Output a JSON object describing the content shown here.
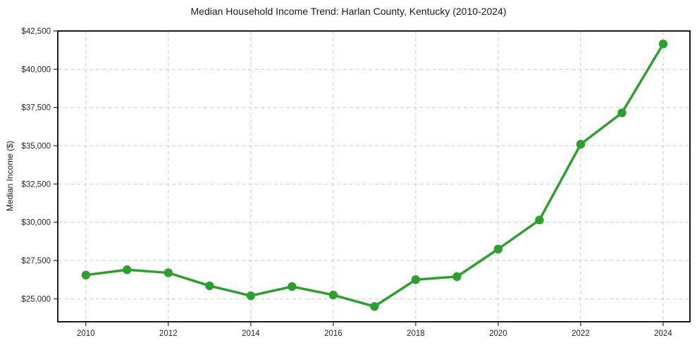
{
  "chart_data": {
    "type": "line",
    "title": "Median Household Income Trend: Harlan County, Kentucky (2010-2024)",
    "xlabel": "",
    "ylabel": "Median Income ($)",
    "x": [
      2010,
      2011,
      2012,
      2013,
      2014,
      2015,
      2016,
      2017,
      2018,
      2019,
      2020,
      2021,
      2022,
      2023,
      2024
    ],
    "values": [
      26550,
      26900,
      26700,
      25850,
      25200,
      25800,
      25250,
      24500,
      26250,
      26450,
      28250,
      30150,
      35100,
      37150,
      41650
    ],
    "x_ticks": [
      {
        "value": 2010,
        "label": "2010"
      },
      {
        "value": 2012,
        "label": "2012"
      },
      {
        "value": 2014,
        "label": "2014"
      },
      {
        "value": 2016,
        "label": "2016"
      },
      {
        "value": 2018,
        "label": "2018"
      },
      {
        "value": 2020,
        "label": "2020"
      },
      {
        "value": 2022,
        "label": "2022"
      },
      {
        "value": 2024,
        "label": "2024"
      }
    ],
    "y_ticks": [
      {
        "value": 25000,
        "label": "$25,000"
      },
      {
        "value": 27500,
        "label": "$27,500"
      },
      {
        "value": 30000,
        "label": "$30,000"
      },
      {
        "value": 32500,
        "label": "$32,500"
      },
      {
        "value": 35000,
        "label": "$35,000"
      },
      {
        "value": 37500,
        "label": "$37,500"
      },
      {
        "value": 40000,
        "label": "$40,000"
      },
      {
        "value": 42500,
        "label": "$42,500"
      }
    ],
    "xlim": [
      2009.32,
      2024.65
    ],
    "ylim": [
      23500,
      42500
    ],
    "grid": true,
    "legend_position": "none",
    "line_color": "#2ca02c",
    "marker": "circle"
  }
}
